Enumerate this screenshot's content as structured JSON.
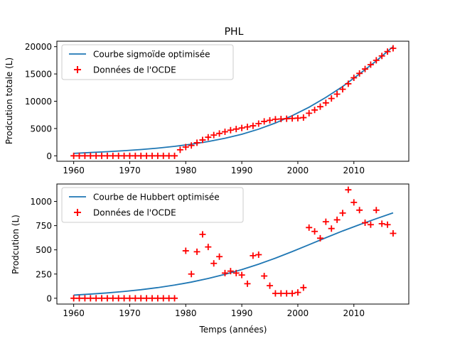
{
  "colors": {
    "curve": "#1f77b4",
    "data": "#ff0000",
    "axis": "#000000",
    "legend_border": "#cccccc"
  },
  "chart_data": [
    {
      "type": "scatter",
      "title": "PHL",
      "xlabel": "",
      "ylabel": "Prodcution totale (L)",
      "xlim": [
        1957,
        2019.8
      ],
      "ylim": [
        -1000,
        21000
      ],
      "xticks": [
        1960,
        1970,
        1980,
        1990,
        2000,
        2010
      ],
      "yticks": [
        0,
        5000,
        10000,
        15000,
        20000
      ],
      "grid": false,
      "legend_placement": "upper-left",
      "series": [
        {
          "name": "Courbe sigmoïde optimisée",
          "kind": "line",
          "x": [
            1960,
            1963,
            1966,
            1969,
            1972,
            1975,
            1978,
            1981,
            1984,
            1987,
            1990,
            1993,
            1996,
            1999,
            2002,
            2005,
            2008,
            2011,
            2014,
            2017
          ],
          "y": [
            450,
            600,
            760,
            940,
            1150,
            1410,
            1730,
            2120,
            2610,
            3210,
            3950,
            4880,
            6010,
            7350,
            8900,
            10700,
            12700,
            15000,
            17400,
            20000
          ]
        },
        {
          "name": "Données de l'OCDE",
          "kind": "scatter",
          "x": [
            1960,
            1961,
            1962,
            1963,
            1964,
            1965,
            1966,
            1967,
            1968,
            1969,
            1970,
            1971,
            1972,
            1973,
            1974,
            1975,
            1976,
            1977,
            1978,
            1979,
            1980,
            1981,
            1982,
            1983,
            1984,
            1985,
            1986,
            1987,
            1988,
            1989,
            1990,
            1991,
            1992,
            1993,
            1994,
            1995,
            1996,
            1997,
            1998,
            1999,
            2000,
            2001,
            2002,
            2003,
            2004,
            2005,
            2006,
            2007,
            2008,
            2009,
            2010,
            2011,
            2012,
            2013,
            2014,
            2015,
            2016,
            2017
          ],
          "y": [
            0,
            0,
            0,
            0,
            0,
            0,
            0,
            0,
            0,
            0,
            0,
            0,
            0,
            0,
            0,
            0,
            0,
            0,
            0,
            1100,
            1600,
            1900,
            2400,
            2900,
            3400,
            3800,
            4100,
            4400,
            4700,
            4900,
            5100,
            5300,
            5500,
            5900,
            6300,
            6500,
            6700,
            6750,
            6800,
            6850,
            6900,
            7000,
            7800,
            8400,
            9000,
            9700,
            10500,
            11300,
            12200,
            13200,
            14300,
            15100,
            15900,
            16700,
            17500,
            18300,
            19100,
            19700
          ]
        }
      ]
    },
    {
      "type": "scatter",
      "title": "",
      "xlabel": "Temps (années)",
      "ylabel": "Prodcution (L)",
      "xlim": [
        1957,
        2019.8
      ],
      "ylim": [
        -60,
        1180
      ],
      "xticks": [
        1960,
        1970,
        1980,
        1990,
        2000,
        2010
      ],
      "yticks": [
        0,
        250,
        500,
        750,
        1000
      ],
      "grid": false,
      "legend_placement": "upper-left",
      "series": [
        {
          "name": "Courbe de Hubbert optimisée",
          "kind": "line",
          "x": [
            1960,
            1963,
            1966,
            1969,
            1972,
            1975,
            1978,
            1981,
            1984,
            1987,
            1990,
            1993,
            1996,
            1999,
            2002,
            2005,
            2008,
            2011,
            2014,
            2017
          ],
          "y": [
            32,
            43,
            55,
            70,
            88,
            110,
            136,
            167,
            204,
            247,
            296,
            352,
            414,
            482,
            553,
            625,
            695,
            760,
            822,
            882
          ]
        },
        {
          "name": "Données de l'OCDE",
          "kind": "scatter",
          "x": [
            1960,
            1961,
            1962,
            1963,
            1964,
            1965,
            1966,
            1967,
            1968,
            1969,
            1970,
            1971,
            1972,
            1973,
            1974,
            1975,
            1976,
            1977,
            1978,
            1980,
            1981,
            1982,
            1983,
            1984,
            1985,
            1986,
            1987,
            1988,
            1989,
            1990,
            1991,
            1992,
            1993,
            1994,
            1995,
            1996,
            1997,
            1998,
            1999,
            2000,
            2001,
            2002,
            2003,
            2004,
            2005,
            2006,
            2007,
            2008,
            2009,
            2010,
            2011,
            2012,
            2013,
            2014,
            2015,
            2016,
            2017
          ],
          "y": [
            0,
            0,
            0,
            0,
            0,
            0,
            0,
            0,
            0,
            0,
            0,
            0,
            0,
            0,
            0,
            0,
            0,
            0,
            0,
            490,
            250,
            480,
            660,
            530,
            360,
            430,
            260,
            280,
            260,
            240,
            150,
            440,
            450,
            230,
            130,
            50,
            50,
            50,
            50,
            60,
            110,
            730,
            690,
            620,
            790,
            720,
            810,
            880,
            1120,
            990,
            910,
            780,
            760,
            910,
            770,
            760,
            670
          ]
        }
      ]
    }
  ]
}
